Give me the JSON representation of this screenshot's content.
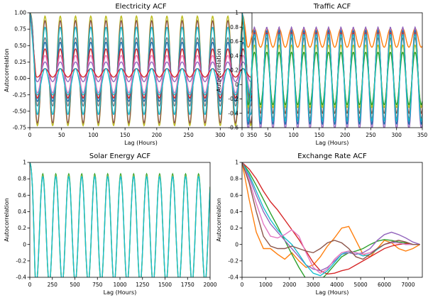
{
  "figure": {
    "colors": [
      "#1f77b4",
      "#ff7f0e",
      "#2ca02c",
      "#d62728",
      "#9467bd",
      "#8c564b",
      "#e377c2",
      "#7f7f7f",
      "#bcbd22",
      "#17becf"
    ]
  },
  "chart_data": [
    {
      "type": "line",
      "title": "Electricity ACF",
      "xlabel": "Lag (Hours)",
      "ylabel": "Autocorrelation",
      "xlim": [
        0,
        350
      ],
      "ylim": [
        -0.75,
        1.0
      ],
      "xticks": [
        0,
        50,
        100,
        150,
        200,
        250,
        300,
        350
      ],
      "yticks": [
        -0.75,
        -0.5,
        -0.25,
        0.0,
        0.25,
        0.5,
        0.75,
        1.0
      ],
      "grid": false,
      "period": 24,
      "series": [
        {
          "trough": -0.72,
          "peak": 0.95,
          "color": "#bcbd22"
        },
        {
          "trough": -0.68,
          "peak": 0.88,
          "color": "#8c564b"
        },
        {
          "trough": -0.55,
          "peak": 0.78,
          "color": "#17becf"
        },
        {
          "trough": -0.42,
          "peak": 0.62,
          "color": "#7f7f7f"
        },
        {
          "trough": -0.35,
          "peak": 0.55,
          "color": "#1f77b4"
        },
        {
          "trough": -0.3,
          "peak": 0.45,
          "color": "#d62728"
        },
        {
          "trough": -0.22,
          "peak": 0.35,
          "color": "#e377c2"
        },
        {
          "trough": -0.05,
          "peak": 0.25,
          "color": "#9467bd"
        },
        {
          "trough": 0.02,
          "peak": 0.15,
          "color": "#d62728"
        },
        {
          "trough": -0.25,
          "peak": 0.15,
          "color": "#17becf"
        }
      ]
    },
    {
      "type": "line",
      "title": "Traffic ACF",
      "xlabel": "Lag (Hours)",
      "ylabel": "Autocorrelation",
      "xlim": [
        0,
        350
      ],
      "ylim": [
        -0.6,
        1.0
      ],
      "xticks": [
        0,
        50,
        100,
        150,
        200,
        250,
        300,
        350
      ],
      "yticks": [
        -0.6,
        -0.4,
        -0.2,
        0.0,
        0.2,
        0.4,
        0.6,
        0.8,
        1.0
      ],
      "grid": false,
      "period": 24,
      "series": [
        {
          "trough": 0.52,
          "peak": 0.78,
          "color": "#ff7f0e"
        },
        {
          "trough": -0.62,
          "peak": 0.8,
          "color": "#9467bd"
        },
        {
          "trough": -0.55,
          "peak": 0.75,
          "color": "#1f77b4"
        },
        {
          "trough": -0.48,
          "peak": 0.72,
          "color": "#d62728"
        },
        {
          "trough": -0.4,
          "peak": 0.65,
          "color": "#8c564b"
        },
        {
          "trough": -0.32,
          "peak": 0.55,
          "color": "#bcbd22"
        },
        {
          "trough": -0.28,
          "peak": 0.45,
          "color": "#2ca02c"
        },
        {
          "trough": -0.5,
          "peak": 0.7,
          "color": "#17becf"
        }
      ]
    },
    {
      "type": "line",
      "title": "Solar Energy ACF",
      "xlabel": "Lag (Hours)",
      "ylabel": "Autocorrelation",
      "xlim": [
        0,
        2000
      ],
      "ylim": [
        -0.4,
        1.0
      ],
      "xticks": [
        0,
        250,
        500,
        750,
        1000,
        1250,
        1500,
        1750,
        2000
      ],
      "yticks": [
        -0.4,
        -0.2,
        0.0,
        0.2,
        0.4,
        0.6,
        0.8,
        1.0
      ],
      "grid": false,
      "period": 144,
      "series": [
        {
          "trough": -0.48,
          "peak": 0.86,
          "color": "#2ca02c"
        },
        {
          "trough": -0.47,
          "peak": 0.84,
          "color": "#bcbd22"
        },
        {
          "trough": -0.46,
          "peak": 0.83,
          "color": "#17becf"
        }
      ]
    },
    {
      "type": "line",
      "title": "Exchange Rate ACF",
      "xlabel": "Lag (Hours)",
      "ylabel": "Autocorrelation",
      "xlim": [
        0,
        7600
      ],
      "ylim": [
        -0.4,
        1.0
      ],
      "xticks": [
        0,
        1000,
        2000,
        3000,
        4000,
        5000,
        6000,
        7000
      ],
      "yticks": [
        -0.4,
        -0.2,
        0.0,
        0.2,
        0.4,
        0.6,
        0.8,
        1.0
      ],
      "grid": false,
      "series": [
        {
          "color": "#ff7f0e",
          "x": [
            0,
            300,
            600,
            900,
            1200,
            1500,
            1800,
            2100,
            2400,
            2700,
            3000,
            3300,
            3600,
            3900,
            4200,
            4500,
            4800,
            5100,
            5400,
            5700,
            6000,
            6300,
            6600,
            6900,
            7200,
            7500
          ],
          "y": [
            1.0,
            0.55,
            0.15,
            -0.05,
            -0.05,
            -0.12,
            -0.18,
            -0.1,
            -0.2,
            -0.28,
            -0.25,
            -0.15,
            -0.02,
            0.08,
            0.2,
            0.22,
            0.05,
            -0.12,
            -0.15,
            -0.05,
            0.05,
            0.02,
            -0.05,
            -0.08,
            -0.05,
            0.0
          ]
        },
        {
          "color": "#2ca02c",
          "x": [
            0,
            300,
            600,
            900,
            1200,
            1500,
            1800,
            2100,
            2400,
            2700,
            3000,
            3300,
            3600,
            3900,
            4200,
            4500,
            4800,
            5100,
            5400,
            5700,
            6000,
            6300,
            6600,
            6900,
            7200,
            7500
          ],
          "y": [
            1.0,
            0.88,
            0.72,
            0.55,
            0.38,
            0.22,
            0.05,
            -0.12,
            -0.28,
            -0.42,
            -0.48,
            -0.44,
            -0.35,
            -0.25,
            -0.15,
            -0.1,
            -0.08,
            -0.05,
            0.0,
            0.04,
            0.06,
            0.05,
            0.03,
            0.02,
            0.0,
            0.0
          ]
        },
        {
          "color": "#d62728",
          "x": [
            0,
            300,
            600,
            900,
            1200,
            1500,
            1800,
            2100,
            2400,
            2700,
            3000,
            3300,
            3600,
            3900,
            4200,
            4500,
            4800,
            5100,
            5400,
            5700,
            6000,
            6300,
            6600,
            6900,
            7200,
            7500
          ],
          "y": [
            1.0,
            0.92,
            0.8,
            0.65,
            0.52,
            0.42,
            0.3,
            0.18,
            0.06,
            -0.08,
            -0.22,
            -0.32,
            -0.36,
            -0.35,
            -0.32,
            -0.3,
            -0.25,
            -0.2,
            -0.15,
            -0.1,
            -0.05,
            -0.02,
            0.0,
            0.01,
            0.0,
            0.0
          ]
        },
        {
          "color": "#9467bd",
          "x": [
            0,
            300,
            600,
            900,
            1200,
            1500,
            1800,
            2100,
            2400,
            2700,
            3000,
            3300,
            3600,
            3900,
            4200,
            4500,
            4800,
            5100,
            5400,
            5700,
            6000,
            6300,
            6600,
            6900,
            7200,
            7500
          ],
          "y": [
            1.0,
            0.82,
            0.6,
            0.4,
            0.25,
            0.15,
            0.05,
            -0.05,
            -0.15,
            -0.25,
            -0.3,
            -0.32,
            -0.28,
            -0.2,
            -0.12,
            -0.1,
            -0.12,
            -0.1,
            -0.05,
            0.05,
            0.12,
            0.15,
            0.12,
            0.08,
            0.03,
            0.0
          ]
        },
        {
          "color": "#17becf",
          "x": [
            0,
            300,
            600,
            900,
            1200,
            1500,
            1800,
            2100,
            2400,
            2700,
            3000,
            3300,
            3600,
            3900,
            4200,
            4500,
            4800,
            5100,
            5400,
            5700,
            6000,
            6300,
            6600,
            6900,
            7200,
            7500
          ],
          "y": [
            1.0,
            0.85,
            0.65,
            0.45,
            0.3,
            0.18,
            0.08,
            0.0,
            -0.12,
            -0.25,
            -0.35,
            -0.38,
            -0.32,
            -0.22,
            -0.12,
            -0.08,
            -0.1,
            -0.14,
            -0.12,
            -0.06,
            0.0,
            0.03,
            0.02,
            0.0,
            0.0,
            0.0
          ]
        },
        {
          "color": "#e377c2",
          "x": [
            0,
            300,
            600,
            900,
            1200,
            1500,
            1800,
            2100,
            2400,
            2700,
            3000,
            3300,
            3600,
            3900,
            4200,
            4500,
            4800,
            5100,
            5400,
            5700,
            6000,
            6300,
            6600,
            6900,
            7200,
            7500
          ],
          "y": [
            1.0,
            0.78,
            0.5,
            0.25,
            0.1,
            0.08,
            0.12,
            0.18,
            0.1,
            -0.1,
            -0.28,
            -0.35,
            -0.3,
            -0.18,
            -0.1,
            -0.08,
            -0.1,
            -0.12,
            -0.1,
            -0.05,
            0.0,
            0.02,
            0.02,
            0.0,
            0.0,
            0.0
          ]
        },
        {
          "color": "#8c564b",
          "x": [
            0,
            300,
            600,
            900,
            1200,
            1500,
            1800,
            2100,
            2400,
            2700,
            3000,
            3300,
            3600,
            3900,
            4200,
            4500,
            4800,
            5100,
            5400,
            5700,
            6000,
            6300,
            6600,
            6900,
            7200,
            7500
          ],
          "y": [
            1.0,
            0.75,
            0.4,
            0.1,
            -0.02,
            -0.05,
            -0.05,
            -0.02,
            -0.05,
            -0.08,
            -0.1,
            -0.05,
            0.02,
            0.05,
            0.02,
            -0.05,
            -0.15,
            -0.18,
            -0.12,
            -0.05,
            0.0,
            0.03,
            0.05,
            0.03,
            0.0,
            0.0
          ]
        }
      ]
    }
  ]
}
